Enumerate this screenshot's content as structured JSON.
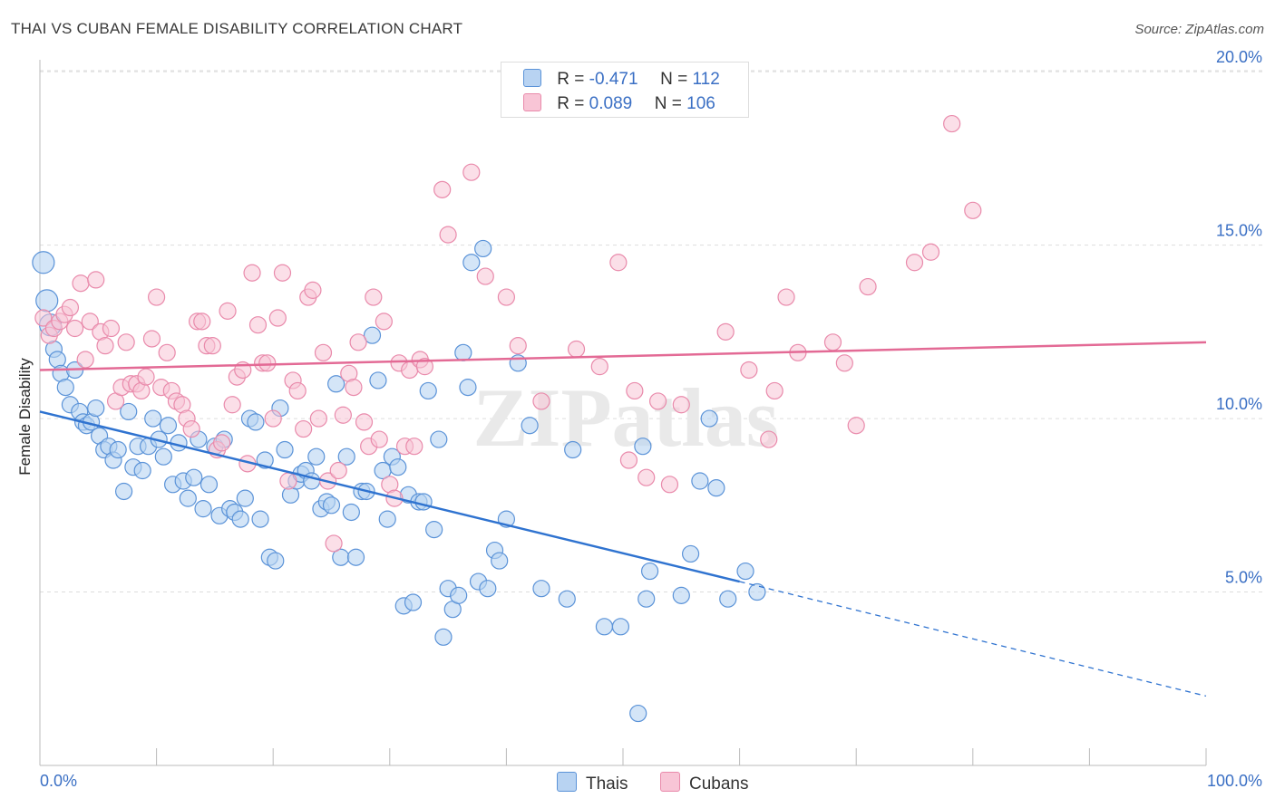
{
  "header": {
    "title": "THAI VS CUBAN FEMALE DISABILITY CORRELATION CHART",
    "source": "Source: ZipAtlas.com"
  },
  "legend": {
    "thais": {
      "r_label": "R =",
      "r_value": "-0.471",
      "n_label": "N =",
      "n_value": "112"
    },
    "cubans": {
      "r_label": "R =",
      "r_value": "0.089",
      "n_label": "N =",
      "n_value": "106"
    }
  },
  "bottom_legend": {
    "thais": "Thais",
    "cubans": "Cubans"
  },
  "colors": {
    "thais_fill": "#b8d3f2",
    "thais_stroke": "#5b93d8",
    "thais_line": "#2f73d0",
    "cubans_fill": "#f8c5d6",
    "cubans_stroke": "#e98aab",
    "cubans_line": "#e36a95",
    "tick_label": "#3a6fc4",
    "grid": "#dddddd"
  },
  "chart_data": {
    "type": "scatter",
    "title": "THAI VS CUBAN FEMALE DISABILITY CORRELATION CHART",
    "xlabel": "",
    "ylabel": "Female Disability",
    "xlim": [
      0,
      100
    ],
    "ylim": [
      0,
      20.5
    ],
    "x_tick_labels": [
      "0.0%",
      "100.0%"
    ],
    "y_ticks": [
      5,
      10,
      15,
      20
    ],
    "y_tick_labels": [
      "5.0%",
      "10.0%",
      "15.0%",
      "20.0%"
    ],
    "grid": true,
    "legend_position": "top-center",
    "watermark": "ZIPatlas",
    "series": [
      {
        "name": "Thais",
        "trend": {
          "x0": 0,
          "y0": 10.2,
          "x1": 60,
          "y1": 5.3,
          "dash_to_x": 100,
          "dash_to_y": 2.0
        },
        "points": [
          [
            0.3,
            14.5
          ],
          [
            0.6,
            13.4
          ],
          [
            0.9,
            12.7
          ],
          [
            1.2,
            12.0
          ],
          [
            1.5,
            11.7
          ],
          [
            1.8,
            11.3
          ],
          [
            2.2,
            10.9
          ],
          [
            2.6,
            10.4
          ],
          [
            3.0,
            11.4
          ],
          [
            3.4,
            10.2
          ],
          [
            3.7,
            9.9
          ],
          [
            4.0,
            9.8
          ],
          [
            4.4,
            9.9
          ],
          [
            4.8,
            10.3
          ],
          [
            5.1,
            9.5
          ],
          [
            5.5,
            9.1
          ],
          [
            5.9,
            9.2
          ],
          [
            6.3,
            8.8
          ],
          [
            6.7,
            9.1
          ],
          [
            7.2,
            7.9
          ],
          [
            7.6,
            10.2
          ],
          [
            8.0,
            8.6
          ],
          [
            8.4,
            9.2
          ],
          [
            8.8,
            8.5
          ],
          [
            9.3,
            9.2
          ],
          [
            9.7,
            10.0
          ],
          [
            10.2,
            9.4
          ],
          [
            10.6,
            8.9
          ],
          [
            11.0,
            9.8
          ],
          [
            11.4,
            8.1
          ],
          [
            11.9,
            9.3
          ],
          [
            12.3,
            8.2
          ],
          [
            12.7,
            7.7
          ],
          [
            13.2,
            8.3
          ],
          [
            13.6,
            9.4
          ],
          [
            14.0,
            7.4
          ],
          [
            14.5,
            8.1
          ],
          [
            15.0,
            9.2
          ],
          [
            15.4,
            7.2
          ],
          [
            15.8,
            9.4
          ],
          [
            16.3,
            7.4
          ],
          [
            16.7,
            7.3
          ],
          [
            17.2,
            7.1
          ],
          [
            17.6,
            7.7
          ],
          [
            18.0,
            10.0
          ],
          [
            18.5,
            9.9
          ],
          [
            18.9,
            7.1
          ],
          [
            19.3,
            8.8
          ],
          [
            19.7,
            6.0
          ],
          [
            20.2,
            5.9
          ],
          [
            20.6,
            10.3
          ],
          [
            21.0,
            9.1
          ],
          [
            21.5,
            7.8
          ],
          [
            22.0,
            8.2
          ],
          [
            22.4,
            8.4
          ],
          [
            22.8,
            8.5
          ],
          [
            23.3,
            8.2
          ],
          [
            23.7,
            8.9
          ],
          [
            24.1,
            7.4
          ],
          [
            24.6,
            7.6
          ],
          [
            25.0,
            7.5
          ],
          [
            25.4,
            11.0
          ],
          [
            25.8,
            6.0
          ],
          [
            26.3,
            8.9
          ],
          [
            26.7,
            7.3
          ],
          [
            27.1,
            6.0
          ],
          [
            27.6,
            7.9
          ],
          [
            28.0,
            7.9
          ],
          [
            28.5,
            12.4
          ],
          [
            29.0,
            11.1
          ],
          [
            29.4,
            8.5
          ],
          [
            29.8,
            7.1
          ],
          [
            30.2,
            8.9
          ],
          [
            30.7,
            8.6
          ],
          [
            31.2,
            4.6
          ],
          [
            31.6,
            7.8
          ],
          [
            32.0,
            4.7
          ],
          [
            32.5,
            7.6
          ],
          [
            32.9,
            7.6
          ],
          [
            33.3,
            10.8
          ],
          [
            33.8,
            6.8
          ],
          [
            34.2,
            9.4
          ],
          [
            34.6,
            3.7
          ],
          [
            35.0,
            5.1
          ],
          [
            35.4,
            4.5
          ],
          [
            35.9,
            4.9
          ],
          [
            36.3,
            11.9
          ],
          [
            36.7,
            10.9
          ],
          [
            37.0,
            14.5
          ],
          [
            37.6,
            5.3
          ],
          [
            38.0,
            14.9
          ],
          [
            38.4,
            5.1
          ],
          [
            39.0,
            6.2
          ],
          [
            39.4,
            5.9
          ],
          [
            40.0,
            7.1
          ],
          [
            41.0,
            11.6
          ],
          [
            42.0,
            9.8
          ],
          [
            43.0,
            5.1
          ],
          [
            45.2,
            4.8
          ],
          [
            45.7,
            9.1
          ],
          [
            48.4,
            4.0
          ],
          [
            49.8,
            4.0
          ],
          [
            51.7,
            9.2
          ],
          [
            52.0,
            4.8
          ],
          [
            52.3,
            5.6
          ],
          [
            55.0,
            4.9
          ],
          [
            55.8,
            6.1
          ],
          [
            56.6,
            8.2
          ],
          [
            57.4,
            10.0
          ],
          [
            58.0,
            8.0
          ],
          [
            59.0,
            4.8
          ],
          [
            60.5,
            5.6
          ],
          [
            61.5,
            5.0
          ],
          [
            51.3,
            1.5
          ]
        ]
      },
      {
        "name": "Cubans",
        "trend": {
          "x0": 0,
          "y0": 11.4,
          "x1": 100,
          "y1": 12.2
        },
        "points": [
          [
            0.3,
            12.9
          ],
          [
            0.8,
            12.4
          ],
          [
            1.2,
            12.6
          ],
          [
            1.7,
            12.8
          ],
          [
            2.1,
            13.0
          ],
          [
            2.6,
            13.2
          ],
          [
            3.0,
            12.6
          ],
          [
            3.5,
            13.9
          ],
          [
            3.9,
            11.7
          ],
          [
            4.3,
            12.8
          ],
          [
            4.8,
            14.0
          ],
          [
            5.2,
            12.5
          ],
          [
            5.6,
            12.1
          ],
          [
            6.1,
            12.6
          ],
          [
            6.5,
            10.5
          ],
          [
            7.0,
            10.9
          ],
          [
            7.4,
            12.2
          ],
          [
            7.8,
            11.0
          ],
          [
            8.3,
            11.0
          ],
          [
            8.7,
            10.8
          ],
          [
            9.1,
            11.2
          ],
          [
            9.6,
            12.3
          ],
          [
            10.0,
            13.5
          ],
          [
            10.4,
            10.9
          ],
          [
            10.9,
            11.9
          ],
          [
            11.3,
            10.8
          ],
          [
            11.7,
            10.5
          ],
          [
            12.2,
            10.4
          ],
          [
            12.6,
            10.0
          ],
          [
            13.0,
            9.7
          ],
          [
            13.5,
            12.8
          ],
          [
            13.9,
            12.8
          ],
          [
            14.3,
            12.1
          ],
          [
            14.8,
            12.1
          ],
          [
            15.2,
            9.1
          ],
          [
            15.6,
            9.3
          ],
          [
            16.1,
            13.1
          ],
          [
            16.5,
            10.4
          ],
          [
            16.9,
            11.2
          ],
          [
            17.4,
            11.4
          ],
          [
            17.8,
            8.7
          ],
          [
            18.2,
            14.2
          ],
          [
            18.7,
            12.7
          ],
          [
            19.1,
            11.6
          ],
          [
            19.5,
            11.6
          ],
          [
            20.0,
            10.0
          ],
          [
            20.4,
            12.9
          ],
          [
            20.8,
            14.2
          ],
          [
            21.3,
            8.2
          ],
          [
            21.7,
            11.1
          ],
          [
            22.1,
            10.8
          ],
          [
            22.6,
            9.7
          ],
          [
            23.0,
            13.5
          ],
          [
            23.4,
            13.7
          ],
          [
            23.9,
            10.0
          ],
          [
            24.3,
            11.9
          ],
          [
            24.7,
            8.2
          ],
          [
            25.2,
            6.4
          ],
          [
            25.6,
            8.5
          ],
          [
            26.0,
            10.1
          ],
          [
            26.5,
            11.3
          ],
          [
            26.9,
            10.9
          ],
          [
            27.3,
            12.2
          ],
          [
            27.8,
            9.9
          ],
          [
            28.2,
            9.2
          ],
          [
            28.6,
            13.5
          ],
          [
            29.1,
            9.4
          ],
          [
            29.5,
            12.8
          ],
          [
            30.0,
            8.1
          ],
          [
            30.4,
            7.7
          ],
          [
            30.8,
            11.6
          ],
          [
            31.3,
            9.2
          ],
          [
            31.7,
            11.4
          ],
          [
            32.1,
            9.2
          ],
          [
            32.6,
            11.7
          ],
          [
            33.0,
            11.5
          ],
          [
            34.5,
            16.6
          ],
          [
            35.0,
            15.3
          ],
          [
            37.0,
            17.1
          ],
          [
            38.2,
            14.1
          ],
          [
            40.0,
            13.5
          ],
          [
            41.0,
            12.1
          ],
          [
            43.0,
            10.5
          ],
          [
            46.0,
            12.0
          ],
          [
            48.0,
            11.5
          ],
          [
            49.6,
            14.5
          ],
          [
            50.5,
            8.8
          ],
          [
            51.0,
            10.8
          ],
          [
            52.0,
            8.3
          ],
          [
            53.0,
            10.5
          ],
          [
            55.0,
            10.4
          ],
          [
            58.8,
            12.5
          ],
          [
            60.8,
            11.4
          ],
          [
            62.5,
            9.4
          ],
          [
            63.0,
            10.8
          ],
          [
            64.0,
            13.5
          ],
          [
            65.0,
            11.9
          ],
          [
            68.0,
            12.2
          ],
          [
            69.0,
            11.6
          ],
          [
            70.0,
            9.8
          ],
          [
            71.0,
            13.8
          ],
          [
            75.0,
            14.5
          ],
          [
            76.4,
            14.8
          ],
          [
            78.2,
            18.5
          ],
          [
            80.0,
            16.0
          ],
          [
            54.0,
            8.1
          ]
        ]
      }
    ]
  }
}
